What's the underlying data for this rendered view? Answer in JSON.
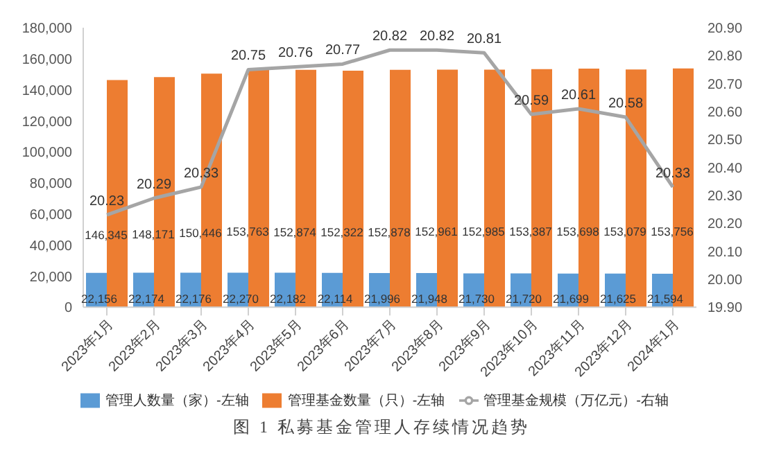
{
  "chart_data": {
    "type": "bar",
    "title": "图 1 私募基金管理人存续情况趋势",
    "categories": [
      "2023年1月",
      "2023年2月",
      "2023年3月",
      "2023年4月",
      "2023年5月",
      "2023年6月",
      "2023年7月",
      "2023年8月",
      "2023年9月",
      "2023年10月",
      "2023年11月",
      "2023年12月",
      "2024年1月"
    ],
    "series": [
      {
        "name": "管理人数量（家）-左轴",
        "color": "#5b9bd5",
        "values": [
          22156,
          22174,
          22176,
          22270,
          22182,
          22114,
          21996,
          21948,
          21730,
          21720,
          21699,
          21625,
          21594
        ],
        "value_labels": [
          "22,156",
          "22,174",
          "22,176",
          "22,270",
          "22,182",
          "22,114",
          "21,996",
          "21,948",
          "21,730",
          "21,720",
          "21,699",
          "21,625",
          "21,594"
        ]
      },
      {
        "name": "管理基金数量（只）-左轴",
        "color": "#ed7d31",
        "values": [
          146345,
          148171,
          150446,
          153763,
          152874,
          152322,
          152878,
          152961,
          152985,
          153387,
          153698,
          153079,
          153756
        ],
        "value_labels": [
          "146,345",
          "148,171",
          "150,446",
          "153,763",
          "152,874",
          "152,322",
          "152,878",
          "152,961",
          "152,985",
          "153,387",
          "153,698",
          "153,079",
          "153,756"
        ]
      },
      {
        "name": "管理基金规模（万亿元）-右轴",
        "type": "line",
        "axis": "y2",
        "color": "#a5a5a5",
        "values": [
          20.23,
          20.29,
          20.33,
          20.75,
          20.76,
          20.77,
          20.82,
          20.82,
          20.81,
          20.59,
          20.61,
          20.58,
          20.33
        ],
        "value_labels": [
          "20.23",
          "20.29",
          "20.33",
          "20.75",
          "20.76",
          "20.77",
          "20.82",
          "20.82",
          "20.81",
          "20.59",
          "20.61",
          "20.58",
          "20.33"
        ]
      }
    ],
    "ylim": [
      0,
      180000
    ],
    "yticks": [
      0,
      {
        "value": 20000,
        "label": "20,000"
      },
      {
        "value": 40000,
        "label": "40,000"
      },
      {
        "value": 60000,
        "label": "60,000"
      },
      {
        "value": 80000,
        "label": "80,000"
      },
      {
        "value": 100000,
        "label": "100,000"
      },
      {
        "value": 120000,
        "label": "120,000"
      },
      {
        "value": 140000,
        "label": "140,000"
      },
      {
        "value": 160000,
        "label": "160,000"
      },
      {
        "value": 180000,
        "label": "180,000"
      }
    ],
    "y2lim": [
      19.9,
      20.9
    ],
    "y2ticks": [
      {
        "value": 19.9,
        "label": "19.90"
      },
      {
        "value": 20.0,
        "label": "20.00"
      },
      {
        "value": 20.1,
        "label": "20.10"
      },
      {
        "value": 20.2,
        "label": "20.20"
      },
      {
        "value": 20.3,
        "label": "20.30"
      },
      {
        "value": 20.4,
        "label": "20.40"
      },
      {
        "value": 20.5,
        "label": "20.50"
      },
      {
        "value": 20.6,
        "label": "20.60"
      },
      {
        "value": 20.7,
        "label": "20.70"
      },
      {
        "value": 20.8,
        "label": "20.80"
      },
      {
        "value": 20.9,
        "label": "20.90"
      }
    ],
    "grid": false,
    "legend": "bottom",
    "marker": "none"
  }
}
